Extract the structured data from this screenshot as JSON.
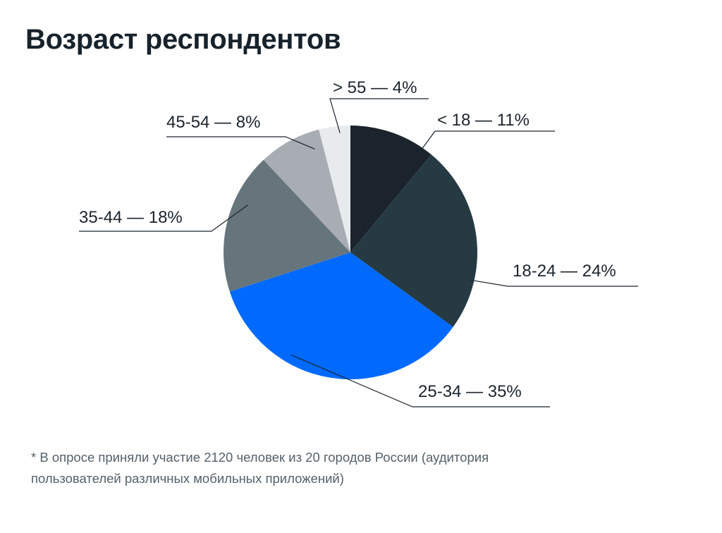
{
  "chart_data": {
    "type": "pie",
    "title": "Возраст респондентов",
    "slices": [
      {
        "label": "< 18 — 11%",
        "category": "< 18",
        "value": 11,
        "color": "#1b242d"
      },
      {
        "label": "18-24 — 24%",
        "category": "18-24",
        "value": 24,
        "color": "#263a43"
      },
      {
        "label": "25-34 — 35%",
        "category": "25-34",
        "value": 35,
        "color": "#006aff"
      },
      {
        "label": "35-44 — 18%",
        "category": "35-44",
        "value": 18,
        "color": "#66757c"
      },
      {
        "label": "45-54 — 8%",
        "category": "45-54",
        "value": 8,
        "color": "#a7adb2"
      },
      {
        "label": "> 55 — 4%",
        "category": "> 55",
        "value": 4,
        "color": "#e8ebed"
      }
    ],
    "start": "12 o'clock",
    "direction": "clockwise",
    "legend": "none",
    "labels": "outside with leader lines"
  },
  "footnote": {
    "line1": "* В опросе приняли участие 2120 человек из 20 городов России (аудитория",
    "line2": "пользователей различных мобильных приложений)"
  },
  "colors": {
    "title": "#17222b",
    "label_text": "#1b242d",
    "leader_line": "#1b242d",
    "footnote_text": "#55616a"
  }
}
